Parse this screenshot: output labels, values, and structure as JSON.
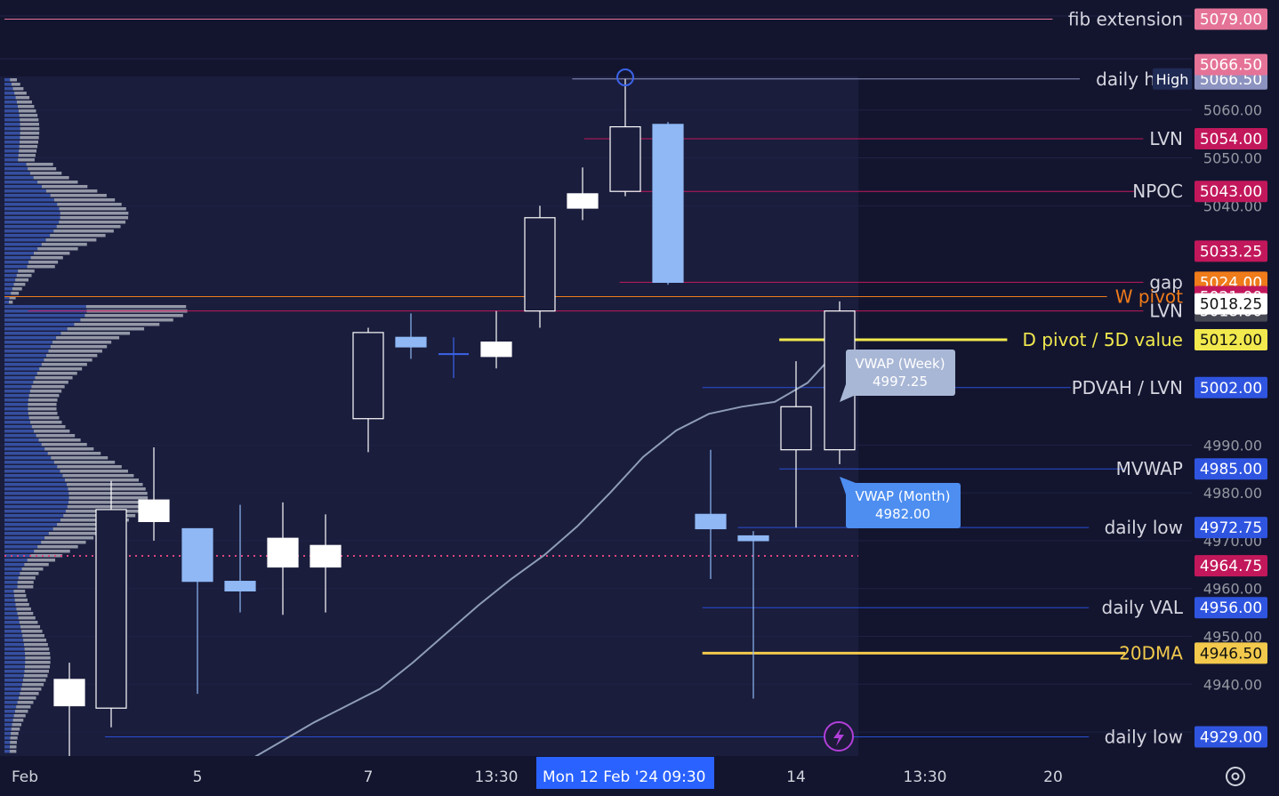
{
  "colors": {
    "background": "#13152f",
    "session_band": "#1a1d3c",
    "grid": "#1f2244",
    "candle_up": "#ffffff",
    "candle_down": "#8fb8f5",
    "profile_blue": "#2f4b9f",
    "profile_gray": "#a9adb8",
    "vwap_line": "#8e9db8",
    "pink": "#c2185b",
    "orange": "#ef7b1a",
    "yellow": "#f2c94c",
    "blue": "#2a4fd6"
  },
  "chart_data": {
    "type": "candlestick",
    "instrument_timeframe": "",
    "x_tick_labels": [
      "Feb",
      "5",
      "7",
      "13:30",
      "14",
      "13:30",
      "20"
    ],
    "crosshair_date_label": "Mon 12 Feb '24",
    "crosshair_time_label": "09:30",
    "y_tick_labels": [
      "5060.00",
      "5050.00",
      "5040.00",
      "4990.00",
      "4980.00",
      "4970.00",
      "4960.00",
      "4950.00",
      "4940.00",
      "4930.00"
    ],
    "ylim": [
      4925,
      5083
    ],
    "candles": [
      {
        "open": 4935.5,
        "high": 4944.5,
        "low": 4920.0,
        "close": 4941.0,
        "dir": "up"
      },
      {
        "open": 4935.0,
        "high": 4982.5,
        "low": 4931.0,
        "close": 4976.5,
        "dir": "up"
      },
      {
        "open": 4974.0,
        "high": 4989.5,
        "low": 4970.0,
        "close": 4978.5,
        "dir": "up"
      },
      {
        "open": 4972.5,
        "high": 4972.5,
        "low": 4938.0,
        "close": 4961.5,
        "dir": "down"
      },
      {
        "open": 4961.5,
        "high": 4977.5,
        "low": 4955.0,
        "close": 4959.5,
        "dir": "down"
      },
      {
        "open": 4964.5,
        "high": 4978.0,
        "low": 4954.5,
        "close": 4970.5,
        "dir": "up"
      },
      {
        "open": 4964.5,
        "high": 4975.5,
        "low": 4955.0,
        "close": 4969.0,
        "dir": "up"
      },
      {
        "open": 4995.5,
        "high": 5014.5,
        "low": 4988.5,
        "close": 5013.5,
        "dir": "up"
      },
      {
        "open": 5012.5,
        "high": 5017.5,
        "low": 5008.0,
        "close": 5010.5,
        "dir": "down"
      },
      {
        "open": 5009.0,
        "high": 5012.5,
        "low": 5004.0,
        "close": 5009.0,
        "dir": "flat"
      },
      {
        "open": 5008.5,
        "high": 5018.0,
        "low": 5006.0,
        "close": 5011.5,
        "dir": "up"
      },
      {
        "open": 5018.0,
        "high": 5040.0,
        "low": 5014.5,
        "close": 5037.5,
        "dir": "up"
      },
      {
        "open": 5039.5,
        "high": 5048.0,
        "low": 5037.0,
        "close": 5042.5,
        "dir": "up"
      },
      {
        "open": 5043.0,
        "high": 5066.5,
        "low": 5042.0,
        "close": 5056.5,
        "dir": "up"
      },
      {
        "open": 5057.0,
        "high": 5057.5,
        "low": 5023.5,
        "close": 5024.0,
        "dir": "down"
      },
      {
        "open": 4975.5,
        "high": 4989.0,
        "low": 4962.0,
        "close": 4972.5,
        "dir": "down"
      },
      {
        "open": 4971.0,
        "high": 4972.0,
        "low": 4937.0,
        "close": 4970.0,
        "dir": "down"
      },
      {
        "open": 4989.0,
        "high": 5007.5,
        "low": 4972.75,
        "close": 4998.0,
        "dir": "up"
      },
      {
        "open": 4989.0,
        "high": 5020.0,
        "low": 4986.0,
        "close": 5018.0,
        "dir": "up"
      }
    ],
    "vwap_line": [
      {
        "x": 0,
        "y": 4914.0
      },
      {
        "x": 1,
        "y": 4919.0
      },
      {
        "x": 2,
        "y": 4924.0
      },
      {
        "x": 3,
        "y": 4928.0
      },
      {
        "x": 4,
        "y": 4932.0
      },
      {
        "x": 5,
        "y": 4935.5
      },
      {
        "x": 6,
        "y": 4939.0
      },
      {
        "x": 7,
        "y": 4944.5
      },
      {
        "x": 8,
        "y": 4950.5
      },
      {
        "x": 9,
        "y": 4956.5
      },
      {
        "x": 10,
        "y": 4962.0
      },
      {
        "x": 11,
        "y": 4967.0
      },
      {
        "x": 12,
        "y": 4973.0
      },
      {
        "x": 13,
        "y": 4980.0
      },
      {
        "x": 14,
        "y": 4987.5
      },
      {
        "x": 15,
        "y": 4993.0
      },
      {
        "x": 16,
        "y": 4996.5
      },
      {
        "x": 17,
        "y": 4998.0
      },
      {
        "x": 18,
        "y": 4999.0
      },
      {
        "x": 19,
        "y": 5003.0
      },
      {
        "x": 20,
        "y": 5010.5
      }
    ],
    "levels": [
      {
        "label": "fib extension",
        "price_label": "5079.00",
        "price": 5079.0,
        "color": "#e57398",
        "text_color": "#d6d6e0",
        "start": 0.0
      },
      {
        "label": "daily high",
        "price_label": "5066.50",
        "price": 5066.5,
        "color": "#8d93c0",
        "text_color": "#d6d6e0",
        "start": 0.48,
        "tag": "High"
      },
      {
        "label": "LVN",
        "price_label": "5054.00",
        "price": 5054.0,
        "color": "#c2185b",
        "text_color": "#d6d6e0",
        "start": 0.49
      },
      {
        "label": "NPOC",
        "price_label": "5043.00",
        "price": 5043.0,
        "color": "#c2185b",
        "text_color": "#d6d6e0",
        "start": 0.52
      },
      {
        "label": "gap",
        "price_label": "5024.00",
        "price": 5024.0,
        "color": "#c2185b",
        "text_color": "#d6d6e0",
        "start": 0.52,
        "badge_color": "#ef7b1a"
      },
      {
        "label": "W pivot",
        "price_label": "5021.00",
        "price": 5021.0,
        "color": "#ef7b1a",
        "text_color": "#ef7b1a",
        "start": 0.0,
        "badge_color": "#c2185b"
      },
      {
        "label": "LVN",
        "price_label": "5018.00",
        "price": 5018.0,
        "color": "#c2185b",
        "text_color": "#d6d6e0",
        "start": 0.02,
        "badge_color": "#474a55"
      },
      {
        "label": "D pivot / 5D value",
        "price_label": "5012.00",
        "price": 5012.0,
        "color": "#f2e94e",
        "text_color": "#f2e94e",
        "start": 0.655,
        "badge_color": "#f2e94e",
        "badge_text": "#111111"
      },
      {
        "label": "PDVAH / LVN",
        "price_label": "5002.00",
        "price": 5002.0,
        "color": "#2a4fd6",
        "text_color": "#d6d6e0",
        "start": 0.59
      },
      {
        "label": "MVWAP",
        "price_label": "4985.00",
        "price": 4985.0,
        "color": "#2a4fd6",
        "text_color": "#d6d6e0",
        "start": 0.655
      },
      {
        "label": "daily low",
        "price_label": "4972.75",
        "price": 4972.75,
        "color": "#2a4fd6",
        "text_color": "#d6d6e0",
        "start": 0.62
      },
      {
        "label": "daily VAL",
        "price_label": "4956.00",
        "price": 4956.0,
        "color": "#2a4fd6",
        "text_color": "#d6d6e0",
        "start": 0.59
      },
      {
        "label": "20DMA",
        "price_label": "4946.50",
        "price": 4946.5,
        "color": "#f2c94c",
        "text_color": "#f2c94c",
        "start": 0.59,
        "badge_color": "#f2c94c",
        "badge_text": "#111111"
      },
      {
        "label": "daily low",
        "price_label": "4929.00",
        "price": 4929.0,
        "color": "#2a4fd6",
        "text_color": "#d6d6e0",
        "start": 0.085
      }
    ],
    "extra_price_badges": [
      {
        "price_label": "5066.50",
        "price": 5069.5,
        "color": "#e57398"
      },
      {
        "price_label": "5033.25",
        "price": 5030.5,
        "color": "#c2185b"
      },
      {
        "price_label": "5018.25",
        "price": 5019.5,
        "color": "#ffffff",
        "text": "#111111"
      },
      {
        "price_label": "4964.75",
        "price": 4964.75,
        "color": "#c2185b"
      }
    ],
    "callouts": [
      {
        "title": "VWAP (Week)",
        "value": "4997.25"
      },
      {
        "title": "VWAP (Month)",
        "value": "4982.00"
      }
    ],
    "volume_profile_note": ""
  }
}
